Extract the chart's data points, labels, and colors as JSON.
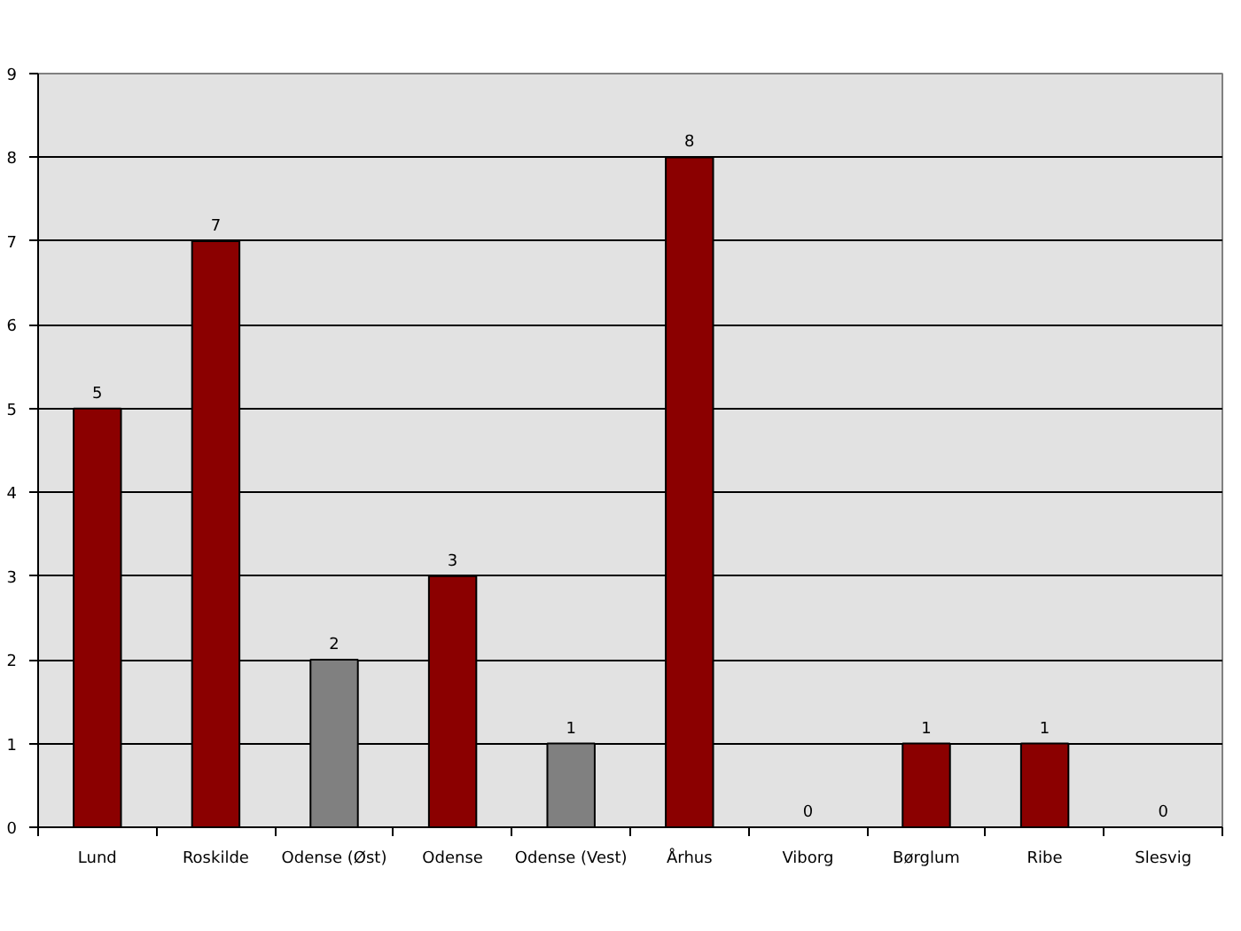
{
  "chart_data": {
    "type": "bar",
    "categories": [
      "Lund",
      "Roskilde",
      "Odense (Øst)",
      "Odense",
      "Odense (Vest)",
      "Århus",
      "Viborg",
      "Børglum",
      "Ribe",
      "Slesvig"
    ],
    "values": [
      5,
      7,
      2,
      3,
      1,
      8,
      0,
      1,
      1,
      0
    ],
    "colors": [
      "#8b0000",
      "#8b0000",
      "#808080",
      "#8b0000",
      "#808080",
      "#8b0000",
      null,
      "#8b0000",
      "#8b0000",
      null
    ],
    "ylim": [
      0,
      9
    ],
    "yticks": [
      0,
      1,
      2,
      3,
      4,
      5,
      6,
      7,
      8,
      9
    ],
    "grid": "y",
    "data_labels": true
  }
}
